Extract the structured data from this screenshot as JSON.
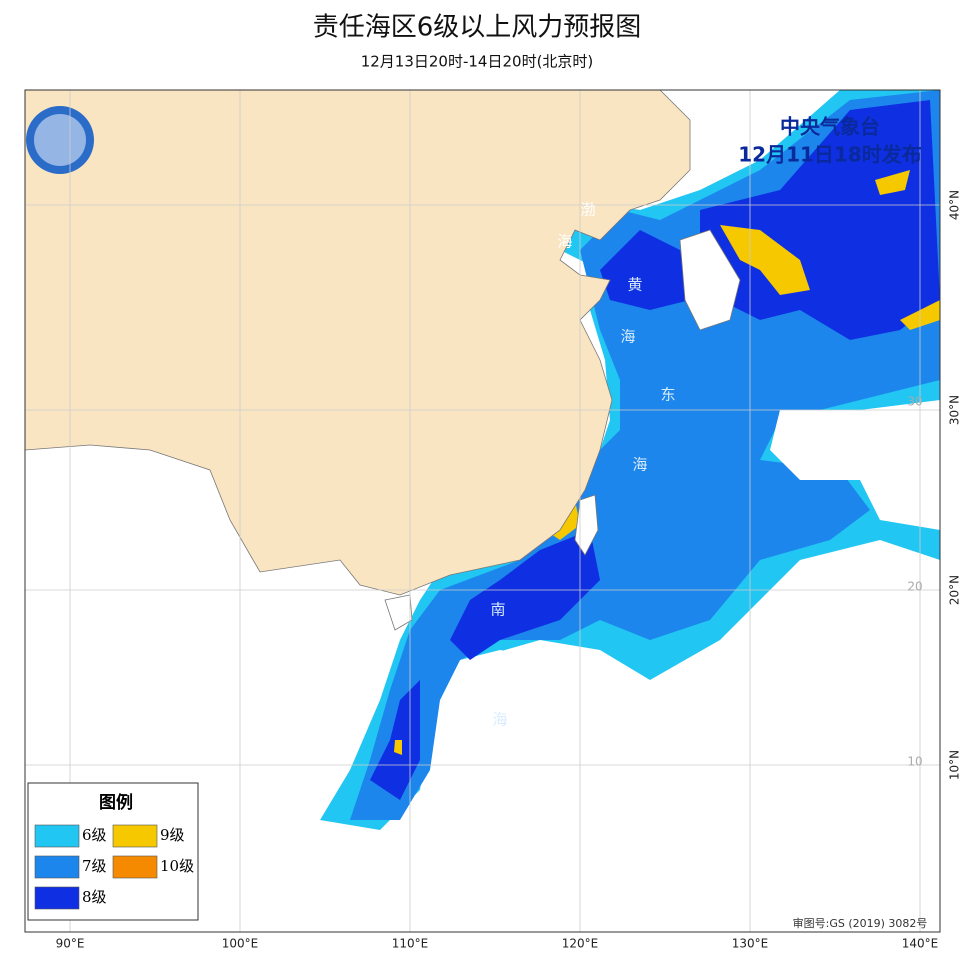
{
  "header": {
    "title": "责任海区6级以上风力预报图",
    "subtitle": "12月13日20时-14日20时(北京时)"
  },
  "issuer": {
    "agency": "中央气象台",
    "issued": "12月11日18时发布"
  },
  "legend": {
    "title": "图例",
    "items": [
      {
        "label": "6级",
        "color": "#22c6f2"
      },
      {
        "label": "7级",
        "color": "#1c86ec"
      },
      {
        "label": "8级",
        "color": "#0f2fe2"
      },
      {
        "label": "9级",
        "color": "#f5c800"
      },
      {
        "label": "10级",
        "color": "#f58a00"
      }
    ]
  },
  "sea_labels": [
    "渤",
    "海",
    "黄",
    "海",
    "东",
    "海",
    "南",
    "海"
  ],
  "lon_labels": [
    "90°E",
    "100°E",
    "110°E",
    "120°E",
    "130°E",
    "140°E"
  ],
  "lat_labels": [
    "40°N",
    "30°N",
    "20°N",
    "10°N"
  ],
  "grid_labels": [
    "30",
    "20",
    "10"
  ],
  "approval": "审图号:GS (2019) 3082号"
}
